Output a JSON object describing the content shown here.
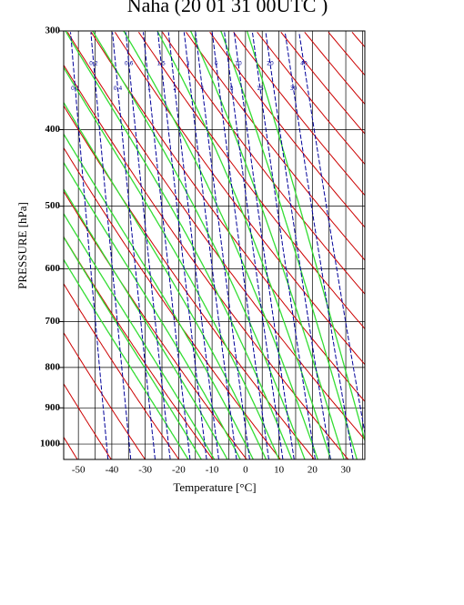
{
  "chart_data": {
    "type": "thermodynamic-diagram",
    "title": "Naha (20 01 31 00UTC )",
    "x_label": "Temperature  [°C]",
    "y_label": "PRESSURE [hPa]",
    "xlim": [
      -54.4,
      35.7
    ],
    "ylim": [
      1046,
      300
    ],
    "y_log": true,
    "xticks": [
      -50,
      -40,
      -30,
      -20,
      -10,
      0,
      10,
      20,
      30
    ],
    "x_minor_ticks": [
      -45,
      -35,
      -25,
      -15,
      -5,
      5,
      15,
      25,
      35
    ],
    "yticks": [
      300,
      400,
      500,
      600,
      700,
      800,
      900,
      1000
    ],
    "dry_adiabats": {
      "color": "#cc0000",
      "values": [
        210,
        220,
        230,
        240,
        250,
        260,
        270,
        280,
        290,
        300,
        310,
        320,
        330,
        340,
        350,
        360,
        370,
        380,
        390,
        400,
        410,
        420,
        430,
        440,
        450
      ]
    },
    "moist_adiabats": {
      "color": "#33dd33",
      "values": [
        -20,
        -16,
        -12,
        -8,
        -4,
        0,
        4,
        8,
        12,
        16,
        20,
        24,
        28,
        32,
        36
      ]
    },
    "mixing_ratios": {
      "color": "#000099",
      "values": [
        0.1,
        0.2,
        0.4,
        0.6,
        1,
        1.5,
        2,
        3,
        4,
        6,
        8,
        10,
        15,
        20,
        30,
        40
      ]
    }
  }
}
